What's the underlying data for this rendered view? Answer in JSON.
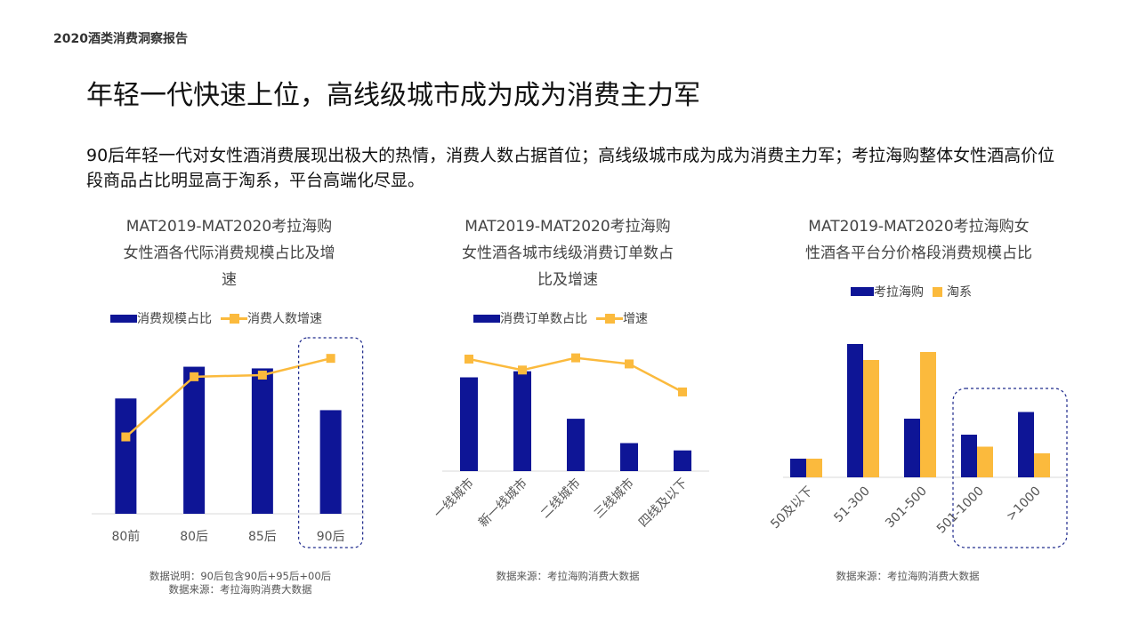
{
  "report_label": "2020酒类消费洞察报告",
  "title": "年轻一代快速上位，高线级城市成为成为消费主力军",
  "summary": "90后年轻一代对女性酒消费展现出极大的热情，消费人数占据首位；高线级城市成为成为消费主力军；考拉海购整体女性酒高价位段商品占比明显高于淘系，平台高端化尽显。",
  "colors": {
    "navy": "#0E1596",
    "gold": "#FBBA3D",
    "dash": "#1F2A8C",
    "axis": "#d9d9d9"
  },
  "chart_data": [
    {
      "type": "bar+line",
      "title_lines": [
        "MAT2019-MAT2020考拉海购",
        "女性酒各代际消费规模占比及增",
        "速"
      ],
      "categories": [
        "80前",
        "80后",
        "85后",
        "90后"
      ],
      "series": [
        {
          "name": "消费规模占比",
          "kind": "bar",
          "values": [
            0.69,
            0.88,
            0.87,
            0.62
          ]
        },
        {
          "name": "消费人数增速",
          "kind": "line",
          "values": [
            0.46,
            0.82,
            0.83,
            0.93
          ]
        }
      ],
      "highlight": "90后",
      "notes": [
        "数据说明：90后包含90后+95后+00后",
        "数据来源：考拉海购消费大数据"
      ]
    },
    {
      "type": "bar+line",
      "title_lines": [
        "MAT2019-MAT2020考拉海购",
        "女性酒各城市线级消费订单数占",
        "比及增速"
      ],
      "categories": [
        "一线城市",
        "新一线城市",
        "二线城市",
        "三线城市",
        "四线及以下"
      ],
      "series": [
        {
          "name": "消费订单数占比",
          "kind": "bar",
          "values": [
            0.77,
            0.82,
            0.43,
            0.23,
            0.17
          ]
        },
        {
          "name": "增速",
          "kind": "line",
          "values": [
            0.92,
            0.83,
            0.93,
            0.88,
            0.65
          ]
        }
      ],
      "notes": [
        "数据来源：考拉海购消费大数据"
      ]
    },
    {
      "type": "bar",
      "title_lines": [
        "MAT2019-MAT2020考拉海购女",
        "性酒各平台分价格段消费规模占比"
      ],
      "categories": [
        "50及以下",
        "51-300",
        "301-500",
        "501-1000",
        ">1000"
      ],
      "series": [
        {
          "name": "考拉海购",
          "values": [
            0.14,
            1.0,
            0.44,
            0.32,
            0.49
          ]
        },
        {
          "name": "淘系",
          "values": [
            0.14,
            0.88,
            0.94,
            0.23,
            0.18
          ]
        }
      ],
      "highlight": [
        "501-1000",
        ">1000"
      ],
      "notes": [
        "数据来源：考拉海购消费大数据"
      ]
    }
  ]
}
